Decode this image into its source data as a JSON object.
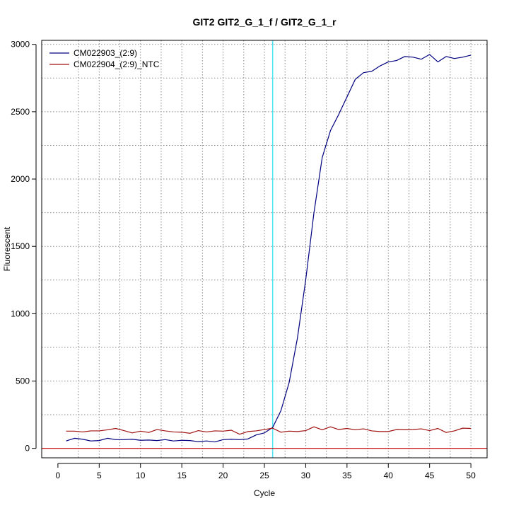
{
  "chart_data": {
    "type": "line",
    "title": "GIT2  GIT2_G_1_f / GIT2_G_1_r",
    "xlabel": "Cycle",
    "ylabel": "Fluorescent",
    "xlim": [
      -1.96,
      51.96
    ],
    "ylim": [
      -70,
      3030
    ],
    "x_ticks": [
      0,
      5,
      10,
      15,
      20,
      25,
      30,
      35,
      40,
      45,
      50
    ],
    "y_ticks": [
      0,
      500,
      1000,
      1500,
      2000,
      2500,
      3000
    ],
    "grid": true,
    "legend_position": "top-left",
    "threshold_cycle": 26,
    "baseline": 0,
    "colors": {
      "threshold": "#4fe4f0",
      "baseline": "#c80000",
      "grid": "#8a8a8a"
    },
    "x": [
      1,
      2,
      3,
      4,
      5,
      6,
      7,
      8,
      9,
      10,
      11,
      12,
      13,
      14,
      15,
      16,
      17,
      18,
      19,
      20,
      21,
      22,
      23,
      24,
      25,
      26,
      27,
      28,
      29,
      30,
      31,
      32,
      33,
      34,
      35,
      36,
      37,
      38,
      39,
      40,
      41,
      42,
      43,
      44,
      45,
      46,
      47,
      48,
      49,
      50
    ],
    "series": [
      {
        "name": "CM022903_(2:9)",
        "color": "#000080",
        "values": [
          55,
          75,
          68,
          55,
          58,
          75,
          65,
          65,
          68,
          60,
          62,
          58,
          65,
          55,
          60,
          58,
          50,
          55,
          48,
          65,
          68,
          65,
          70,
          100,
          115,
          155,
          280,
          490,
          820,
          1250,
          1750,
          2160,
          2360,
          2480,
          2610,
          2740,
          2790,
          2800,
          2840,
          2870,
          2880,
          2910,
          2905,
          2890,
          2925,
          2870,
          2910,
          2895,
          2905,
          2920
        ]
      },
      {
        "name": "CM022904_(2:9)_NTC",
        "color": "#a01010",
        "values": [
          128,
          128,
          122,
          130,
          130,
          138,
          148,
          132,
          115,
          128,
          118,
          140,
          130,
          122,
          120,
          112,
          132,
          122,
          130,
          128,
          135,
          105,
          125,
          130,
          140,
          150,
          120,
          128,
          125,
          132,
          160,
          138,
          160,
          140,
          148,
          138,
          145,
          130,
          125,
          125,
          140,
          138,
          140,
          145,
          132,
          148,
          118,
          130,
          150,
          148
        ]
      }
    ]
  }
}
